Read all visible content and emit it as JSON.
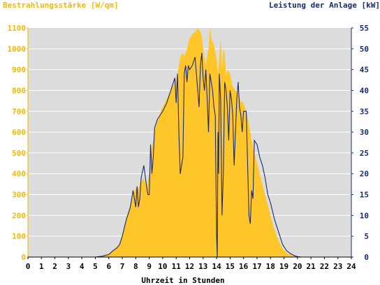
{
  "chart_data": {
    "type": "area",
    "left_axis_label": "Bestrahlungsstärke [W/qm]",
    "right_axis_label": "Leistung der Anlage [kW]",
    "xlabel": "Uhrzeit in Stunden",
    "xlim": [
      0,
      24
    ],
    "x_ticks": [
      "0",
      "1",
      "2",
      "3",
      "4",
      "5",
      "6",
      "7",
      "8",
      "9",
      "10",
      "11",
      "12",
      "13",
      "14",
      "15",
      "16",
      "17",
      "18",
      "19",
      "20",
      "21",
      "22",
      "23",
      "24"
    ],
    "ylim_left": [
      0,
      1100
    ],
    "y_left_ticks": [
      "0",
      "100",
      "200",
      "300",
      "400",
      "500",
      "600",
      "700",
      "800",
      "900",
      "1000",
      "1100"
    ],
    "ylim_right": [
      0,
      55
    ],
    "y_right_ticks": [
      "0",
      "5",
      "10",
      "15",
      "20",
      "25",
      "30",
      "35",
      "40",
      "45",
      "50",
      "55"
    ],
    "grid": "horizontal",
    "colors": {
      "irradiance": "#ffc629",
      "power": "#1a2a73",
      "plot_bg": "#dcdcdc",
      "left_text": "#f5b800",
      "right_text": "#1a2a73",
      "grid": "#ffffff"
    },
    "series": [
      {
        "name": "Bestrahlungsstärke [W/qm]",
        "axis": "left",
        "kind": "area",
        "x": [
          0,
          5,
          5.5,
          6,
          6.3,
          6.6,
          6.8,
          7.0,
          7.3,
          7.6,
          7.8,
          8.0,
          8.2,
          8.4,
          8.6,
          8.8,
          9.0,
          9.2,
          9.4,
          9.6,
          9.8,
          10.0,
          10.3,
          10.6,
          10.9,
          11.1,
          11.3,
          11.5,
          11.6,
          11.8,
          12.0,
          12.2,
          12.4,
          12.5,
          12.6,
          12.7,
          12.8,
          12.9,
          13.0,
          13.2,
          13.4,
          13.5,
          13.6,
          13.8,
          14.0,
          14.1,
          14.2,
          14.3,
          14.4,
          14.5,
          14.6,
          14.7,
          14.8,
          15.0,
          15.2,
          15.4,
          15.6,
          15.8,
          16.0,
          16.2,
          16.4,
          16.6,
          16.8,
          17.0,
          17.2,
          17.4,
          17.6,
          17.8,
          18.0,
          18.3,
          18.6,
          18.9,
          19.2,
          19.5,
          19.8,
          20.0,
          20.3,
          24
        ],
        "y": [
          0,
          0,
          5,
          15,
          30,
          45,
          60,
          100,
          180,
          250,
          300,
          330,
          330,
          360,
          380,
          330,
          400,
          520,
          600,
          650,
          690,
          720,
          760,
          800,
          840,
          880,
          960,
          980,
          960,
          1000,
          1050,
          1070,
          1080,
          1090,
          1100,
          1090,
          1080,
          1060,
          1000,
          920,
          1000,
          1100,
          1050,
          1020,
          950,
          880,
          960,
          1050,
          900,
          1000,
          980,
          870,
          900,
          880,
          820,
          800,
          780,
          750,
          740,
          700,
          640,
          560,
          500,
          450,
          400,
          350,
          300,
          250,
          200,
          130,
          80,
          40,
          20,
          10,
          5,
          2,
          0,
          0
        ]
      },
      {
        "name": "Leistung der Anlage [kW]",
        "axis": "right",
        "kind": "line",
        "x": [
          0,
          5,
          5.5,
          6,
          6.3,
          6.6,
          6.8,
          7.0,
          7.3,
          7.6,
          7.8,
          8.0,
          8.1,
          8.2,
          8.3,
          8.4,
          8.6,
          8.8,
          8.9,
          9.0,
          9.1,
          9.2,
          9.3,
          9.4,
          9.6,
          9.8,
          10.0,
          10.3,
          10.6,
          10.9,
          11.0,
          11.1,
          11.2,
          11.3,
          11.5,
          11.6,
          11.7,
          11.8,
          11.9,
          12.0,
          12.2,
          12.4,
          12.5,
          12.6,
          12.7,
          12.8,
          12.9,
          13.0,
          13.1,
          13.2,
          13.3,
          13.4,
          13.5,
          13.6,
          13.7,
          13.8,
          13.9,
          14.0,
          14.05,
          14.1,
          14.15,
          14.2,
          14.3,
          14.4,
          14.5,
          14.6,
          14.7,
          14.8,
          14.9,
          15.0,
          15.1,
          15.2,
          15.3,
          15.4,
          15.5,
          15.6,
          15.7,
          15.8,
          15.9,
          16.0,
          16.2,
          16.4,
          16.5,
          16.6,
          16.7,
          16.8,
          17.0,
          17.2,
          17.4,
          17.6,
          17.8,
          18.0,
          18.3,
          18.6,
          18.9,
          19.2,
          19.5,
          19.8,
          20.0,
          20.3,
          24
        ],
        "y": [
          0,
          0,
          0.2,
          0.6,
          1.5,
          2.2,
          3,
          5,
          9,
          12,
          16,
          12,
          17,
          12,
          14,
          19,
          22,
          17,
          15,
          15,
          27,
          20,
          24,
          31,
          33,
          34,
          35,
          37,
          40,
          43,
          37,
          44,
          30,
          20,
          24,
          44,
          46,
          42,
          46,
          45,
          46,
          48,
          44,
          40,
          36,
          46,
          49,
          43,
          40,
          45,
          38,
          30,
          44,
          42,
          40,
          36,
          34,
          5,
          0,
          30,
          20,
          44,
          38,
          10,
          20,
          42,
          40,
          36,
          28,
          40,
          38,
          34,
          22,
          30,
          38,
          42,
          36,
          34,
          30,
          35,
          35,
          10,
          8,
          16,
          14,
          28,
          27,
          24,
          22,
          19,
          15,
          13,
          9,
          6,
          3,
          1.5,
          0.8,
          0.3,
          0.1,
          0,
          0
        ]
      }
    ]
  }
}
